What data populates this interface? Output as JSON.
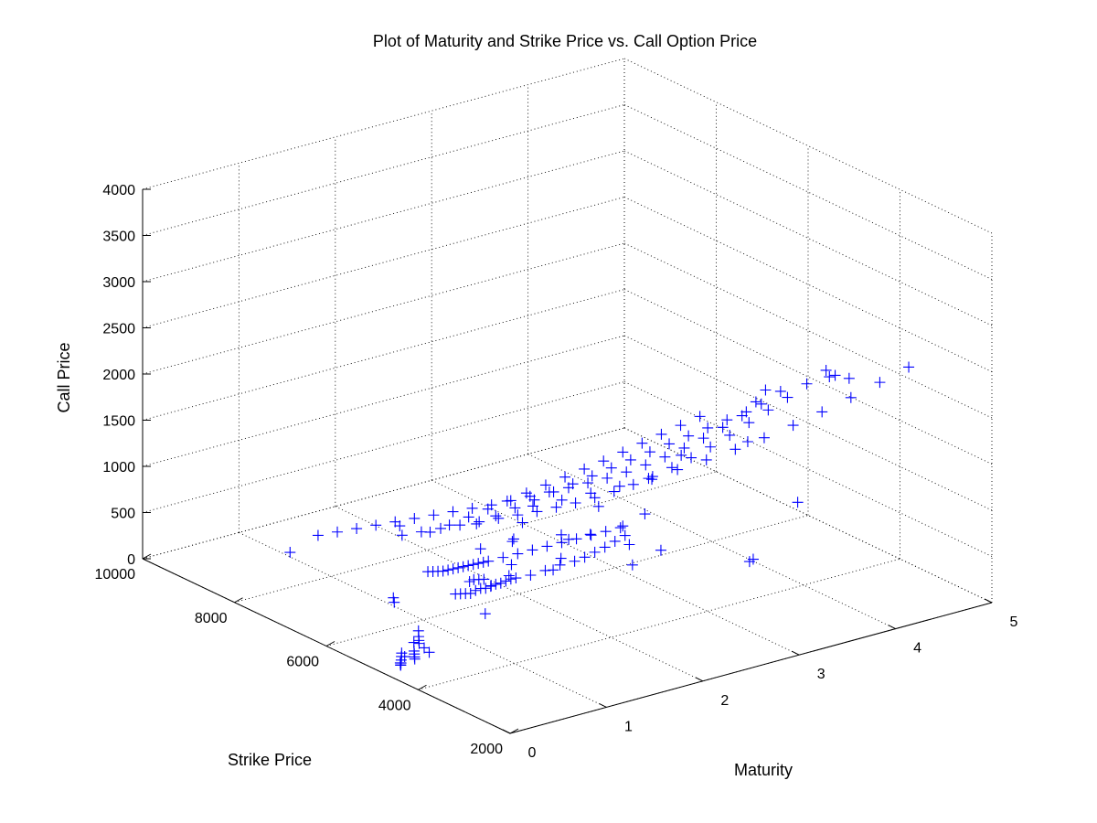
{
  "chart_data": {
    "type": "scatter",
    "title": "Plot of Maturity and Strike Price vs. Call Option Price",
    "xlabel": "Maturity",
    "ylabel": "Strike Price",
    "zlabel": "Call Price",
    "xlim": [
      0,
      5
    ],
    "ylim": [
      2000,
      10000
    ],
    "zlim": [
      0,
      4000
    ],
    "xticks": [
      "0",
      "1",
      "2",
      "3",
      "4",
      "5"
    ],
    "yticks": [
      "2000",
      "4000",
      "6000",
      "8000",
      "10000"
    ],
    "zticks": [
      "0",
      "500",
      "1000",
      "1500",
      "2000",
      "2500",
      "3000",
      "3500",
      "4000"
    ],
    "grid": true,
    "marker": "+",
    "color": "#0000ff",
    "series": [
      {
        "x": [
          0.05,
          0.1,
          0.15,
          0.2,
          0.25,
          0.3,
          0.35,
          0.4,
          0.05,
          0.1,
          0.15,
          0.2,
          0.25,
          0.05,
          0.1,
          0.15,
          0.2,
          0.3,
          0.4,
          0.1,
          0.2,
          0.3,
          0.1,
          0.2,
          0.3,
          0.4,
          0.5,
          0.6,
          0.7,
          0.8,
          0.9,
          1.0,
          1.1,
          1.2,
          1.3,
          1.5,
          1.7,
          1.9,
          2.1,
          2.3,
          2.5,
          2.7,
          2.9,
          3.1,
          0.1,
          0.2,
          0.3,
          0.4,
          0.5,
          0.6,
          0.7,
          0.8,
          0.9,
          1.0,
          1.1,
          1.2,
          1.3,
          1.5,
          1.7,
          1.9,
          2.1,
          2.3,
          2.5,
          2.7,
          2.9,
          3.1,
          0.2,
          0.4,
          0.6,
          0.8,
          1.0,
          1.2,
          1.4,
          1.6,
          1.8,
          2.0,
          2.2,
          2.4,
          2.6,
          2.8,
          3.0,
          3.2,
          3.4,
          3.6,
          3.8,
          4.0,
          4.2,
          4.4,
          4.6,
          4.8,
          5.0,
          0.5,
          0.7,
          0.9,
          1.1,
          1.3,
          1.5,
          1.7,
          1.9,
          2.1,
          2.3,
          2.5,
          2.7,
          2.9,
          3.1,
          3.3,
          3.5,
          3.7,
          3.9,
          4.1,
          4.3,
          4.5,
          4.7,
          4.9,
          1.0,
          1.3,
          1.6,
          1.9,
          2.2,
          2.5,
          2.8,
          3.1,
          3.4,
          3.7,
          4.0,
          4.3,
          4.6,
          4.9,
          0.6,
          0.8,
          1.0,
          1.2,
          1.4,
          1.6,
          1.8,
          2.0,
          2.2,
          2.4,
          2.6,
          2.8,
          3.0,
          3.2,
          3.4,
          0.7,
          0.9,
          1.1,
          1.3,
          1.5,
          1.7,
          1.9,
          2.1,
          2.3,
          2.5,
          2.7,
          2.9,
          3.1,
          3.3,
          3.5,
          3.6,
          3.7,
          3.85,
          3.9,
          3.6,
          3.7,
          0.1,
          0.8,
          1.8,
          2.7,
          2.9,
          3.2,
          3.0,
          1.0,
          0.6,
          1.2,
          1.6,
          2.2,
          2.6,
          0.6,
          0.9,
          1.4,
          1.8,
          2.0,
          2.4,
          1.1,
          1.5,
          0.8,
          0.3,
          0.5,
          0.7,
          1.3,
          1.9,
          2.3,
          2.8
        ],
        "y": [
          4400,
          4600,
          4700,
          4800,
          4900,
          5000,
          5100,
          5200,
          4200,
          4300,
          4400,
          4500,
          4600,
          4100,
          4200,
          4300,
          4400,
          4500,
          4600,
          3000,
          3100,
          3200,
          3400,
          3500,
          3600,
          3700,
          3800,
          3900,
          4000,
          4100,
          4200,
          4300,
          4400,
          4500,
          4600,
          4700,
          4800,
          4900,
          5000,
          5200,
          5400,
          5600,
          5800,
          6000,
          4000,
          4100,
          4200,
          4300,
          4400,
          4500,
          4600,
          4700,
          4800,
          4900,
          5000,
          5100,
          5200,
          5300,
          5400,
          5500,
          5600,
          5700,
          5800,
          5900,
          6000,
          6100,
          6600,
          6600,
          6600,
          6600,
          6600,
          6600,
          6600,
          6600,
          6600,
          6600,
          6600,
          6600,
          6600,
          6600,
          6600,
          6600,
          6600,
          6600,
          6600,
          6600,
          6600,
          6600,
          6600,
          6600,
          6600,
          5400,
          5400,
          5400,
          5400,
          5400,
          5400,
          5400,
          5400,
          5400,
          5400,
          5400,
          5400,
          5400,
          5400,
          5400,
          5400,
          5400,
          5400,
          5400,
          5400,
          5400,
          5400,
          5400,
          3600,
          3600,
          3600,
          3600,
          3600,
          3600,
          3600,
          3600,
          3600,
          3600,
          3600,
          3600,
          3600,
          3600,
          5000,
          5000,
          5000,
          5000,
          5000,
          5000,
          5000,
          5000,
          5000,
          5000,
          5000,
          5000,
          5000,
          5000,
          5000,
          4200,
          4200,
          4200,
          4200,
          4200,
          4200,
          4200,
          4200,
          4200,
          4200,
          4200,
          4200,
          4200,
          4200,
          4200,
          4200,
          4200,
          3000,
          2800,
          2600,
          3500,
          7000,
          6200,
          5800,
          5000,
          4800,
          3500,
          3000,
          6500,
          5800,
          5400,
          6000,
          5500,
          5000,
          3800,
          4300,
          4000,
          4500,
          3600,
          4100,
          3200,
          3400,
          3600,
          2600,
          3000,
          3200,
          2800,
          2900,
          3100,
          2700
        ],
        "z": [
          250,
          120,
          60,
          20,
          5,
          0,
          0,
          0,
          450,
          320,
          250,
          180,
          120,
          600,
          500,
          420,
          350,
          250,
          150,
          1400,
          1350,
          1300,
          1150,
          1100,
          1050,
          1000,
          980,
          950,
          900,
          870,
          840,
          800,
          770,
          740,
          700,
          650,
          620,
          600,
          560,
          500,
          450,
          400,
          360,
          320,
          1250,
          1200,
          1150,
          1100,
          1060,
          1020,
          980,
          940,
          900,
          860,
          820,
          780,
          740,
          700,
          660,
          620,
          580,
          540,
          500,
          460,
          420,
          380,
          1000,
          980,
          960,
          940,
          920,
          900,
          880,
          860,
          840,
          820,
          810,
          800,
          790,
          780,
          775,
          770,
          780,
          800,
          830,
          870,
          920,
          980,
          1050,
          1120,
          1200,
          1200,
          1180,
          1160,
          1140,
          1120,
          1100,
          1080,
          1060,
          1050,
          1040,
          1040,
          1050,
          1070,
          1100,
          1140,
          1190,
          1250,
          1320,
          1400,
          1480,
          1560,
          1650,
          1740,
          1800,
          1780,
          1770,
          1760,
          1760,
          1770,
          1790,
          1820,
          1860,
          1910,
          1970,
          2040,
          2120,
          2200,
          1300,
          1320,
          1350,
          1380,
          1410,
          1440,
          1470,
          1500,
          1530,
          1560,
          1600,
          1640,
          1680,
          1720,
          1760,
          1550,
          1580,
          1610,
          1640,
          1670,
          1700,
          1730,
          1760,
          1790,
          1820,
          1850,
          1880,
          1910,
          1940,
          1970,
          2050,
          2150,
          2550,
          2550,
          2700,
          1100,
          750,
          200,
          300,
          350,
          500,
          600,
          800,
          900,
          400,
          500,
          600,
          700,
          800,
          700,
          800,
          900,
          1000,
          1100,
          1200,
          1300,
          1400,
          1500,
          1600,
          1700,
          1800,
          1900,
          2000,
          2100,
          2200
        ]
      }
    ]
  }
}
